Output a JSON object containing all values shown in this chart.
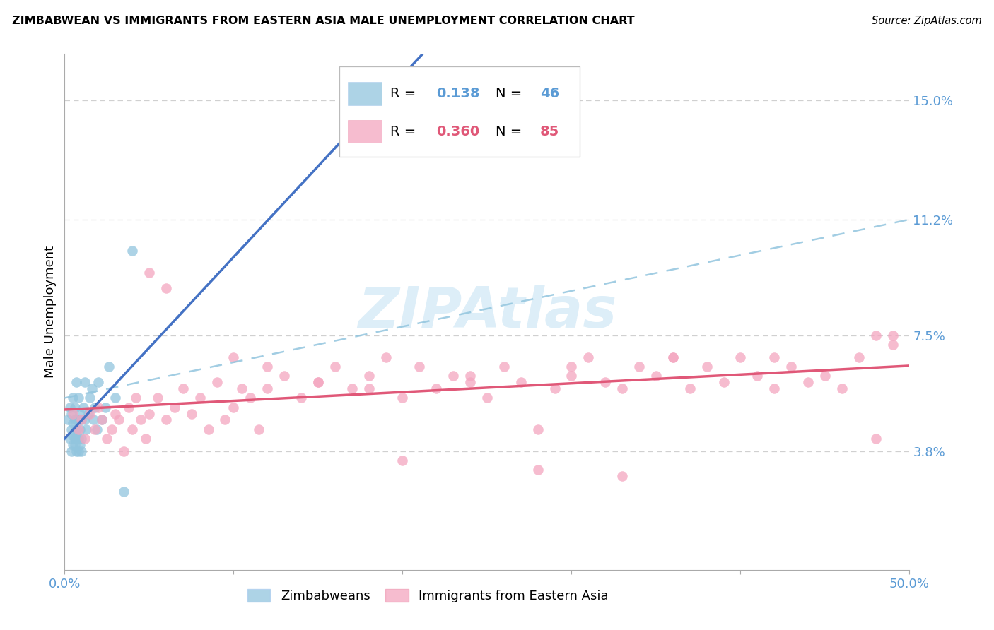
{
  "title": "ZIMBABWEAN VS IMMIGRANTS FROM EASTERN ASIA MALE UNEMPLOYMENT CORRELATION CHART",
  "source": "Source: ZipAtlas.com",
  "ylabel": "Male Unemployment",
  "xlim": [
    0.0,
    0.5
  ],
  "ylim": [
    0.0,
    0.165
  ],
  "ytick_vals": [
    0.038,
    0.075,
    0.112,
    0.15
  ],
  "ytick_labels": [
    "3.8%",
    "7.5%",
    "11.2%",
    "15.0%"
  ],
  "xtick_vals": [
    0.0,
    0.1,
    0.2,
    0.3,
    0.4,
    0.5
  ],
  "xtick_labels": [
    "0.0%",
    "",
    "",
    "",
    "",
    "50.0%"
  ],
  "blue_color": "#92c5de",
  "pink_color": "#f4a6c0",
  "trend_blue_color": "#4472c4",
  "trend_pink_color": "#e05878",
  "dash_blue_color": "#92c5de",
  "axis_tick_color": "#5b9bd5",
  "grid_color": "#d0d0d0",
  "watermark_color": "#ddeef8",
  "legend_r1_val": "0.138",
  "legend_n1_val": "46",
  "legend_r2_val": "0.360",
  "legend_n2_val": "85",
  "zim_x": [
    0.002,
    0.003,
    0.003,
    0.004,
    0.004,
    0.004,
    0.005,
    0.005,
    0.005,
    0.005,
    0.006,
    0.006,
    0.006,
    0.006,
    0.007,
    0.007,
    0.007,
    0.007,
    0.007,
    0.008,
    0.008,
    0.008,
    0.008,
    0.009,
    0.009,
    0.009,
    0.01,
    0.01,
    0.01,
    0.011,
    0.012,
    0.012,
    0.013,
    0.014,
    0.015,
    0.016,
    0.017,
    0.018,
    0.019,
    0.02,
    0.022,
    0.024,
    0.026,
    0.03,
    0.035,
    0.04
  ],
  "zim_y": [
    0.048,
    0.052,
    0.042,
    0.038,
    0.045,
    0.05,
    0.04,
    0.043,
    0.047,
    0.055,
    0.04,
    0.042,
    0.048,
    0.052,
    0.038,
    0.042,
    0.045,
    0.048,
    0.06,
    0.038,
    0.042,
    0.048,
    0.055,
    0.04,
    0.045,
    0.05,
    0.038,
    0.042,
    0.048,
    0.052,
    0.048,
    0.06,
    0.045,
    0.05,
    0.055,
    0.058,
    0.048,
    0.052,
    0.045,
    0.06,
    0.048,
    0.052,
    0.065,
    0.055,
    0.025,
    0.102
  ],
  "ea_x": [
    0.005,
    0.008,
    0.01,
    0.012,
    0.015,
    0.018,
    0.02,
    0.022,
    0.025,
    0.028,
    0.03,
    0.032,
    0.035,
    0.038,
    0.04,
    0.042,
    0.045,
    0.048,
    0.05,
    0.055,
    0.06,
    0.065,
    0.07,
    0.075,
    0.08,
    0.085,
    0.09,
    0.095,
    0.1,
    0.105,
    0.11,
    0.115,
    0.12,
    0.13,
    0.14,
    0.15,
    0.16,
    0.17,
    0.18,
    0.19,
    0.2,
    0.21,
    0.22,
    0.23,
    0.24,
    0.25,
    0.26,
    0.27,
    0.28,
    0.29,
    0.3,
    0.31,
    0.32,
    0.33,
    0.34,
    0.35,
    0.36,
    0.37,
    0.38,
    0.39,
    0.4,
    0.41,
    0.42,
    0.43,
    0.44,
    0.45,
    0.46,
    0.47,
    0.48,
    0.49,
    0.06,
    0.12,
    0.18,
    0.24,
    0.3,
    0.36,
    0.42,
    0.48,
    0.05,
    0.1,
    0.15,
    0.2,
    0.28,
    0.33,
    0.49
  ],
  "ea_y": [
    0.05,
    0.045,
    0.048,
    0.042,
    0.05,
    0.045,
    0.052,
    0.048,
    0.042,
    0.045,
    0.05,
    0.048,
    0.038,
    0.052,
    0.045,
    0.055,
    0.048,
    0.042,
    0.05,
    0.055,
    0.048,
    0.052,
    0.058,
    0.05,
    0.055,
    0.045,
    0.06,
    0.048,
    0.052,
    0.058,
    0.055,
    0.045,
    0.058,
    0.062,
    0.055,
    0.06,
    0.065,
    0.058,
    0.062,
    0.068,
    0.055,
    0.065,
    0.058,
    0.062,
    0.06,
    0.055,
    0.065,
    0.06,
    0.045,
    0.058,
    0.062,
    0.068,
    0.06,
    0.058,
    0.065,
    0.062,
    0.068,
    0.058,
    0.065,
    0.06,
    0.068,
    0.062,
    0.058,
    0.065,
    0.06,
    0.062,
    0.058,
    0.068,
    0.042,
    0.072,
    0.09,
    0.065,
    0.058,
    0.062,
    0.065,
    0.068,
    0.068,
    0.075,
    0.095,
    0.068,
    0.06,
    0.035,
    0.032,
    0.03,
    0.075
  ]
}
